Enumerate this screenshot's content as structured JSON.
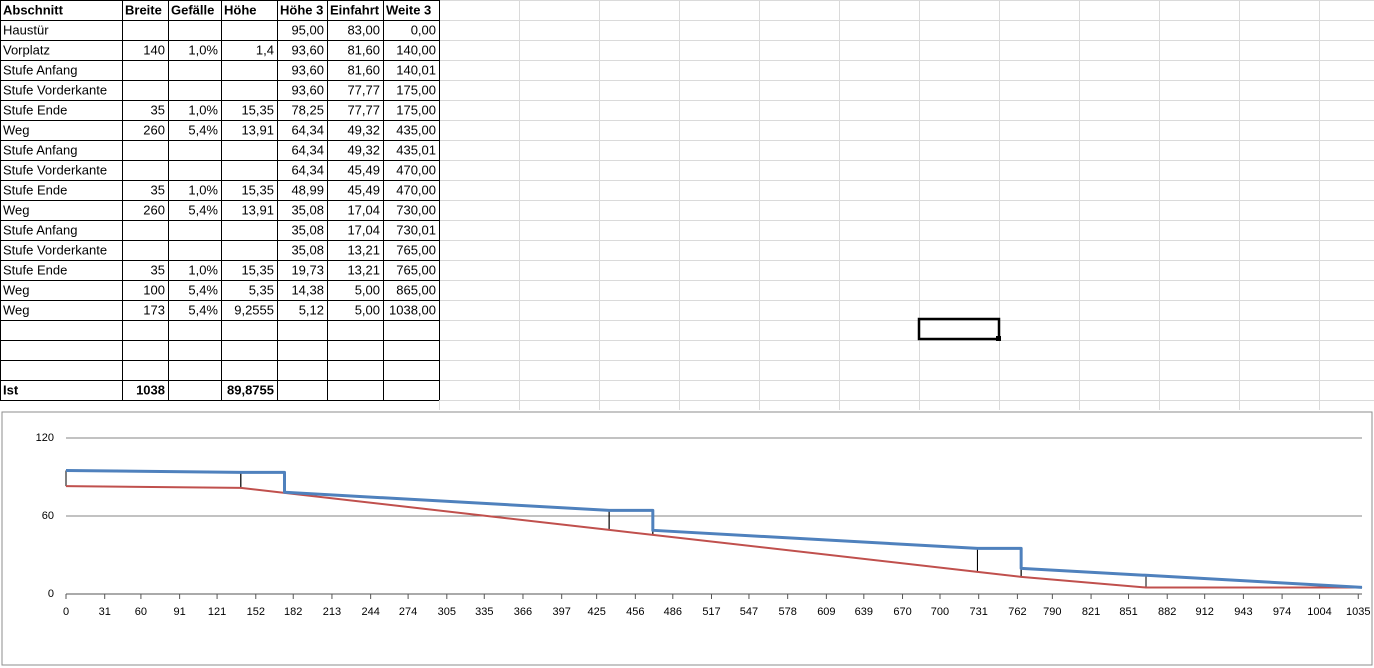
{
  "table": {
    "header": [
      "Abschnitt",
      "Breite",
      "Gefälle",
      "Höhe",
      "Höhe 3",
      "Einfahrt",
      "Weite 3"
    ],
    "rows": [
      [
        "Haustür",
        null,
        null,
        null,
        "95,00",
        "83,00",
        "0,00"
      ],
      [
        "Vorplatz",
        "140",
        "1,0%",
        "1,4",
        "93,60",
        "81,60",
        "140,00"
      ],
      [
        "Stufe Anfang",
        null,
        null,
        null,
        "93,60",
        "81,60",
        "140,01"
      ],
      [
        "Stufe Vorderkante",
        null,
        null,
        null,
        "93,60",
        "77,77",
        "175,00"
      ],
      [
        "Stufe Ende",
        "35",
        "1,0%",
        "15,35",
        "78,25",
        "77,77",
        "175,00"
      ],
      [
        "Weg",
        "260",
        "5,4%",
        "13,91",
        "64,34",
        "49,32",
        "435,00"
      ],
      [
        "Stufe Anfang",
        null,
        null,
        null,
        "64,34",
        "49,32",
        "435,01"
      ],
      [
        "Stufe Vorderkante",
        null,
        null,
        null,
        "64,34",
        "45,49",
        "470,00"
      ],
      [
        "Stufe Ende",
        "35",
        "1,0%",
        "15,35",
        "48,99",
        "45,49",
        "470,00"
      ],
      [
        "Weg",
        "260",
        "5,4%",
        "13,91",
        "35,08",
        "17,04",
        "730,00"
      ],
      [
        "Stufe Anfang",
        null,
        null,
        null,
        "35,08",
        "17,04",
        "730,01"
      ],
      [
        "Stufe Vorderkante",
        null,
        null,
        null,
        "35,08",
        "13,21",
        "765,00"
      ],
      [
        "Stufe Ende",
        "35",
        "1,0%",
        "15,35",
        "19,73",
        "13,21",
        "765,00"
      ],
      [
        "Weg",
        "100",
        "5,4%",
        "5,35",
        "14,38",
        "5,00",
        "865,00"
      ],
      [
        "Weg",
        "173",
        "5,4%",
        "9,2555",
        "5,12",
        "5,00",
        "1038,00"
      ]
    ],
    "total": [
      "Ist",
      "1038",
      null,
      "89,8755",
      null,
      null,
      null
    ]
  },
  "chart_data": {
    "type": "line",
    "x": [
      0,
      140,
      140.01,
      175,
      175,
      435,
      435.01,
      470,
      470,
      730,
      730.01,
      765,
      765,
      865,
      1038
    ],
    "series": [
      {
        "color": "#4f81bd",
        "values": [
          95,
          93.6,
          93.6,
          93.6,
          78.25,
          64.34,
          64.34,
          64.34,
          48.99,
          35.08,
          35.08,
          35.08,
          19.73,
          14.38,
          5.12
        ]
      },
      {
        "color": "#c0504d",
        "values": [
          83,
          81.6,
          81.6,
          77.77,
          77.77,
          49.32,
          49.32,
          45.49,
          45.49,
          17.04,
          17.04,
          13.21,
          13.21,
          5,
          5
        ]
      }
    ],
    "high_low_lines": true,
    "xlim": [
      0,
      1038
    ],
    "xticks": [
      0,
      31,
      60,
      91,
      121,
      152,
      182,
      213,
      244,
      274,
      305,
      335,
      366,
      397,
      425,
      456,
      486,
      517,
      547,
      578,
      609,
      639,
      670,
      700,
      731,
      762,
      790,
      821,
      851,
      882,
      912,
      943,
      974,
      1004,
      1035
    ],
    "ylim": [
      0,
      120
    ],
    "yticks": [
      0,
      60,
      120
    ],
    "grid": true
  }
}
